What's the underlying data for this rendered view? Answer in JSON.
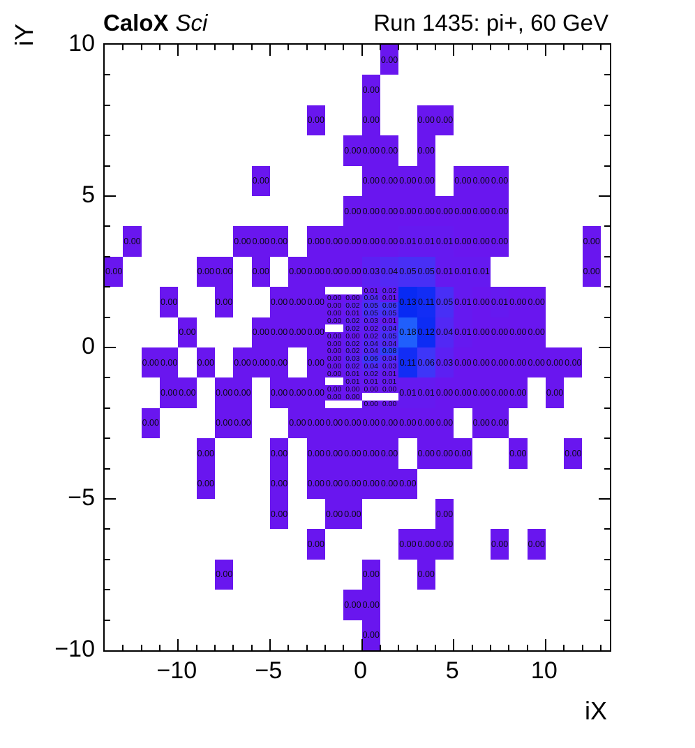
{
  "page": {
    "background": "#ffffff",
    "text_color": "#000000"
  },
  "titles": {
    "left_bold": "CaloX",
    "left_italic": "Sci",
    "right": "Run 1435: pi+, 60 GeV"
  },
  "axes": {
    "x_label": "iX",
    "y_label": "iY",
    "x_range": [
      -14,
      13.5
    ],
    "y_range": [
      -10,
      10
    ],
    "minor_step": 1,
    "x_major_ticks": [
      {
        "v": -10,
        "label": "−10"
      },
      {
        "v": -5,
        "label": "−5"
      },
      {
        "v": 0,
        "label": "0"
      },
      {
        "v": 5,
        "label": "5"
      },
      {
        "v": 10,
        "label": "10"
      }
    ],
    "y_major_ticks": [
      {
        "v": 10,
        "label": "10"
      },
      {
        "v": 5,
        "label": "5"
      },
      {
        "v": 0,
        "label": "0"
      },
      {
        "v": -5,
        "label": "−5"
      },
      {
        "v": -10,
        "label": "−10"
      }
    ]
  },
  "palette": {
    "low_color": "#6916ef",
    "high_color": "#2060fb",
    "stops": [
      [
        0.0,
        105,
        22,
        239
      ],
      [
        0.03,
        92,
        32,
        243
      ],
      [
        0.05,
        72,
        47,
        246
      ],
      [
        0.07,
        52,
        62,
        249
      ],
      [
        0.09,
        38,
        66,
        250
      ],
      [
        0.11,
        18,
        45,
        245
      ],
      [
        0.13,
        8,
        42,
        243
      ],
      [
        0.18,
        32,
        95,
        252
      ]
    ]
  },
  "chart_data": {
    "type": "heatmap",
    "title": "Run 1435: pi+, 60 GeV",
    "subtitle_left": "CaloX Sci",
    "xlabel": "iX",
    "ylabel": "iY",
    "x_range": [
      -14,
      13.5
    ],
    "y_range": [
      -10,
      10
    ],
    "value_format": "0.00",
    "grid": false,
    "legend": "none",
    "cells_format": "[x_low, y_low, width, height, value]",
    "cells": [
      [
        1,
        9,
        1,
        1,
        0.0
      ],
      [
        0,
        8,
        1,
        1,
        0.0
      ],
      [
        -3,
        7,
        1,
        1,
        0.0
      ],
      [
        0,
        7,
        1,
        1,
        0.0
      ],
      [
        3,
        7,
        1,
        1,
        0.0
      ],
      [
        4,
        7,
        1,
        1,
        0.0
      ],
      [
        -1,
        6,
        1,
        1,
        0.0
      ],
      [
        0,
        6,
        1,
        1,
        0.0
      ],
      [
        1,
        6,
        1,
        1,
        0.0
      ],
      [
        3,
        6,
        1,
        1,
        0.0
      ],
      [
        -6,
        5,
        1,
        1,
        0.0
      ],
      [
        0,
        5,
        1,
        1,
        0.0
      ],
      [
        1,
        5,
        1,
        1,
        0.0
      ],
      [
        2,
        5,
        1,
        1,
        0.0
      ],
      [
        3,
        5,
        1,
        1,
        0.0
      ],
      [
        5,
        5,
        1,
        1,
        0.0
      ],
      [
        6,
        5,
        1,
        1,
        0.0
      ],
      [
        7,
        5,
        1,
        1,
        0.0
      ],
      [
        -1,
        4,
        1,
        1,
        0.0
      ],
      [
        0,
        4,
        1,
        1,
        0.0
      ],
      [
        1,
        4,
        1,
        1,
        0.0
      ],
      [
        2,
        4,
        1,
        1,
        0.0
      ],
      [
        3,
        4,
        1,
        1,
        0.0
      ],
      [
        4,
        4,
        1,
        1,
        0.0
      ],
      [
        5,
        4,
        1,
        1,
        0.0
      ],
      [
        6,
        4,
        1,
        1,
        0.0
      ],
      [
        7,
        4,
        1,
        1,
        0.0
      ],
      [
        -13,
        3,
        1,
        1,
        0.0
      ],
      [
        -7,
        3,
        1,
        1,
        0.0
      ],
      [
        -6,
        3,
        1,
        1,
        0.0
      ],
      [
        -5,
        3,
        1,
        1,
        0.0
      ],
      [
        -3,
        3,
        1,
        1,
        0.0
      ],
      [
        -2,
        3,
        1,
        1,
        0.0
      ],
      [
        -1,
        3,
        1,
        1,
        0.0
      ],
      [
        0,
        3,
        1,
        1,
        0.0
      ],
      [
        1,
        3,
        1,
        1,
        0.0
      ],
      [
        2,
        3,
        1,
        1,
        0.01
      ],
      [
        3,
        3,
        1,
        1,
        0.01
      ],
      [
        4,
        3,
        1,
        1,
        0.01
      ],
      [
        5,
        3,
        1,
        1,
        0.0
      ],
      [
        6,
        3,
        1,
        1,
        0.0
      ],
      [
        7,
        3,
        1,
        1,
        0.0
      ],
      [
        12,
        3,
        1,
        1,
        0.0
      ],
      [
        -14,
        2,
        1,
        1,
        0.0
      ],
      [
        -9,
        2,
        1,
        1,
        0.0
      ],
      [
        -8,
        2,
        1,
        1,
        0.0
      ],
      [
        -6,
        2,
        1,
        1,
        0.0
      ],
      [
        -4,
        2,
        1,
        1,
        0.0
      ],
      [
        -3,
        2,
        1,
        1,
        0.0
      ],
      [
        -2,
        2,
        1,
        1,
        0.0
      ],
      [
        -1,
        2,
        1,
        1,
        0.0
      ],
      [
        0,
        2,
        1,
        1,
        0.03
      ],
      [
        1,
        2,
        1,
        1,
        0.04
      ],
      [
        2,
        2,
        1,
        1,
        0.05
      ],
      [
        3,
        2,
        1,
        1,
        0.05
      ],
      [
        4,
        2,
        1,
        1,
        0.01
      ],
      [
        5,
        2,
        1,
        1,
        0.01
      ],
      [
        6,
        2,
        1,
        1,
        0.01
      ],
      [
        12,
        2,
        1,
        1,
        0.0
      ],
      [
        -11,
        1,
        1,
        1,
        0.0
      ],
      [
        -8,
        1,
        1,
        1,
        0.0
      ],
      [
        -5,
        1,
        1,
        1,
        0.0
      ],
      [
        -4,
        1,
        1,
        1,
        0.0
      ],
      [
        -3,
        1,
        1,
        1,
        0.0
      ],
      [
        2,
        1,
        1,
        1,
        0.13
      ],
      [
        3,
        1,
        1,
        1,
        0.11
      ],
      [
        4,
        1,
        1,
        1,
        0.05
      ],
      [
        5,
        1,
        1,
        1,
        0.01
      ],
      [
        6,
        1,
        1,
        1,
        0.0
      ],
      [
        7,
        1,
        1,
        1,
        0.01
      ],
      [
        8,
        1,
        1,
        1,
        0.0
      ],
      [
        9,
        1,
        1,
        1,
        0.0
      ],
      [
        -10,
        0,
        1,
        1,
        0.0
      ],
      [
        -6,
        0,
        1,
        1,
        0.0
      ],
      [
        -5,
        0,
        1,
        1,
        0.0
      ],
      [
        -4,
        0,
        1,
        1,
        0.0
      ],
      [
        -3,
        0,
        1,
        1,
        0.0
      ],
      [
        2,
        0,
        1,
        1,
        0.18
      ],
      [
        3,
        0,
        1,
        1,
        0.12
      ],
      [
        4,
        0,
        1,
        1,
        0.04
      ],
      [
        5,
        0,
        1,
        1,
        0.01
      ],
      [
        6,
        0,
        1,
        1,
        0.0
      ],
      [
        7,
        0,
        1,
        1,
        0.0
      ],
      [
        8,
        0,
        1,
        1,
        0.0
      ],
      [
        9,
        0,
        1,
        1,
        0.0
      ],
      [
        -12,
        -1,
        1,
        1,
        0.0
      ],
      [
        -11,
        -1,
        1,
        1,
        0.0
      ],
      [
        -9,
        -1,
        1,
        1,
        0.0
      ],
      [
        -7,
        -1,
        1,
        1,
        0.0
      ],
      [
        -6,
        -1,
        1,
        1,
        0.0
      ],
      [
        -5,
        -1,
        1,
        1,
        0.0
      ],
      [
        -3,
        -1,
        1,
        1,
        0.0
      ],
      [
        2,
        -1,
        1,
        1,
        0.11
      ],
      [
        3,
        -1,
        1,
        1,
        0.06
      ],
      [
        4,
        -1,
        1,
        1,
        0.03
      ],
      [
        5,
        -1,
        1,
        1,
        0.0
      ],
      [
        6,
        -1,
        1,
        1,
        0.0
      ],
      [
        7,
        -1,
        1,
        1,
        0.0
      ],
      [
        8,
        -1,
        1,
        1,
        0.0
      ],
      [
        9,
        -1,
        1,
        1,
        0.0
      ],
      [
        10,
        -1,
        1,
        1,
        0.0
      ],
      [
        11,
        -1,
        1,
        1,
        0.0
      ],
      [
        -11,
        -2,
        1,
        1,
        0.0
      ],
      [
        -10,
        -2,
        1,
        1,
        0.0
      ],
      [
        -8,
        -2,
        1,
        1,
        0.0
      ],
      [
        -7,
        -2,
        1,
        1,
        0.0
      ],
      [
        -5,
        -2,
        1,
        1,
        0.0
      ],
      [
        -4,
        -2,
        1,
        1,
        0.0
      ],
      [
        -3,
        -2,
        1,
        1,
        0.0
      ],
      [
        2,
        -2,
        1,
        1,
        0.01
      ],
      [
        3,
        -2,
        1,
        1,
        0.01
      ],
      [
        4,
        -2,
        1,
        1,
        0.0
      ],
      [
        5,
        -2,
        1,
        1,
        0.0
      ],
      [
        6,
        -2,
        1,
        1,
        0.0
      ],
      [
        7,
        -2,
        1,
        1,
        0.0
      ],
      [
        8,
        -2,
        1,
        1,
        0.0
      ],
      [
        10,
        -2,
        1,
        1,
        0.0
      ],
      [
        -12,
        -3,
        1,
        1,
        0.0
      ],
      [
        -8,
        -3,
        1,
        1,
        0.0
      ],
      [
        -7,
        -3,
        1,
        1,
        0.0
      ],
      [
        -4,
        -3,
        1,
        1,
        0.0
      ],
      [
        -3,
        -3,
        1,
        1,
        0.0
      ],
      [
        -2,
        -3,
        1,
        1,
        0.0
      ],
      [
        -1,
        -3,
        1,
        1,
        0.0
      ],
      [
        0,
        -3,
        1,
        1,
        0.0
      ],
      [
        1,
        -3,
        1,
        1,
        0.0
      ],
      [
        2,
        -3,
        1,
        1,
        0.0
      ],
      [
        3,
        -3,
        1,
        1,
        0.0
      ],
      [
        4,
        -3,
        1,
        1,
        0.0
      ],
      [
        6,
        -3,
        1,
        1,
        0.0
      ],
      [
        7,
        -3,
        1,
        1,
        0.0
      ],
      [
        -9,
        -4,
        1,
        1,
        0.0
      ],
      [
        -5,
        -4,
        1,
        1,
        0.0
      ],
      [
        -3,
        -4,
        1,
        1,
        0.0
      ],
      [
        -2,
        -4,
        1,
        1,
        0.0
      ],
      [
        -1,
        -4,
        1,
        1,
        0.0
      ],
      [
        0,
        -4,
        1,
        1,
        0.0
      ],
      [
        1,
        -4,
        1,
        1,
        0.0
      ],
      [
        3,
        -4,
        1,
        1,
        0.0
      ],
      [
        4,
        -4,
        1,
        1,
        0.0
      ],
      [
        5,
        -4,
        1,
        1,
        0.0
      ],
      [
        8,
        -4,
        1,
        1,
        0.0
      ],
      [
        11,
        -4,
        1,
        1,
        0.0
      ],
      [
        -9,
        -5,
        1,
        1,
        0.0
      ],
      [
        -5,
        -5,
        1,
        1,
        0.0
      ],
      [
        -3,
        -5,
        1,
        1,
        0.0
      ],
      [
        -2,
        -5,
        1,
        1,
        0.0
      ],
      [
        -1,
        -5,
        1,
        1,
        0.0
      ],
      [
        0,
        -5,
        1,
        1,
        0.0
      ],
      [
        1,
        -5,
        1,
        1,
        0.0
      ],
      [
        2,
        -5,
        1,
        1,
        0.0
      ],
      [
        -5,
        -6,
        1,
        1,
        0.0
      ],
      [
        -2,
        -6,
        1,
        1,
        0.0
      ],
      [
        -1,
        -6,
        1,
        1,
        0.0
      ],
      [
        4,
        -6,
        1,
        1,
        0.0
      ],
      [
        -3,
        -7,
        1,
        1,
        0.0
      ],
      [
        2,
        -7,
        1,
        1,
        0.0
      ],
      [
        3,
        -7,
        1,
        1,
        0.0
      ],
      [
        4,
        -7,
        1,
        1,
        0.0
      ],
      [
        7,
        -7,
        1,
        1,
        0.0
      ],
      [
        9,
        -7,
        1,
        1,
        0.0
      ],
      [
        -8,
        -8,
        1,
        1,
        0.0
      ],
      [
        0,
        -8,
        1,
        1,
        0.0
      ],
      [
        3,
        -8,
        1,
        1,
        0.0
      ],
      [
        -1,
        -9,
        1,
        1,
        0.0
      ],
      [
        0,
        -9,
        1,
        1,
        0.0
      ],
      [
        0,
        -10,
        1,
        1,
        0.0
      ],
      [
        0,
        1.75,
        1,
        0.25,
        0.01
      ],
      [
        1,
        1.75,
        1,
        0.25,
        0.02
      ],
      [
        -2,
        1.5,
        1,
        0.25,
        0.0
      ],
      [
        -1,
        1.5,
        1,
        0.25,
        0.0
      ],
      [
        0,
        1.5,
        1,
        0.25,
        0.04
      ],
      [
        1,
        1.5,
        1,
        0.25,
        0.01
      ],
      [
        -2,
        1.25,
        1,
        0.25,
        0.0
      ],
      [
        -1,
        1.25,
        1,
        0.25,
        0.02
      ],
      [
        0,
        1.25,
        1,
        0.25,
        0.05
      ],
      [
        1,
        1.25,
        1,
        0.25,
        0.06
      ],
      [
        -2,
        1,
        1,
        0.25,
        0.0
      ],
      [
        -1,
        1,
        1,
        0.25,
        0.01
      ],
      [
        0,
        1,
        1,
        0.25,
        0.05
      ],
      [
        1,
        1,
        1,
        0.25,
        0.05
      ],
      [
        -2,
        0.75,
        1,
        0.25,
        0.0
      ],
      [
        -1,
        0.75,
        1,
        0.25,
        0.02
      ],
      [
        0,
        0.75,
        1,
        0.25,
        0.03
      ],
      [
        1,
        0.75,
        1,
        0.25,
        0.01
      ],
      [
        -1,
        0.5,
        1,
        0.25,
        0.02
      ],
      [
        0,
        0.5,
        1,
        0.25,
        0.02
      ],
      [
        1,
        0.5,
        1,
        0.25,
        0.04
      ],
      [
        -2,
        0.25,
        1,
        0.25,
        0.0
      ],
      [
        -1,
        0.25,
        1,
        0.25,
        0.0
      ],
      [
        0,
        0.25,
        1,
        0.25,
        0.02
      ],
      [
        1,
        0.25,
        1,
        0.25,
        0.05
      ],
      [
        -2,
        0,
        1,
        0.25,
        0.0
      ],
      [
        -1,
        0,
        1,
        0.25,
        0.02
      ],
      [
        0,
        0,
        1,
        0.25,
        0.04
      ],
      [
        1,
        0,
        1,
        0.25,
        0.04
      ],
      [
        -2,
        -0.25,
        1,
        0.25,
        0.0
      ],
      [
        -1,
        -0.25,
        1,
        0.25,
        0.02
      ],
      [
        0,
        -0.25,
        1,
        0.25,
        0.04
      ],
      [
        1,
        -0.25,
        1,
        0.25,
        0.08
      ],
      [
        -2,
        -0.5,
        1,
        0.25,
        0.0
      ],
      [
        -1,
        -0.5,
        1,
        0.25,
        0.03
      ],
      [
        0,
        -0.5,
        1,
        0.25,
        0.06
      ],
      [
        1,
        -0.5,
        1,
        0.25,
        0.04
      ],
      [
        -2,
        -0.75,
        1,
        0.25,
        0.0
      ],
      [
        -1,
        -0.75,
        1,
        0.25,
        0.02
      ],
      [
        0,
        -0.75,
        1,
        0.25,
        0.04
      ],
      [
        1,
        -0.75,
        1,
        0.25,
        0.03
      ],
      [
        -2,
        -1,
        1,
        0.25,
        0.0
      ],
      [
        -1,
        -1,
        1,
        0.25,
        0.01
      ],
      [
        0,
        -1,
        1,
        0.25,
        0.02
      ],
      [
        1,
        -1,
        1,
        0.25,
        0.01
      ],
      [
        -1,
        -1.25,
        1,
        0.25,
        0.01
      ],
      [
        0,
        -1.25,
        1,
        0.25,
        0.01
      ],
      [
        1,
        -1.25,
        1,
        0.25,
        0.01
      ],
      [
        -2,
        -1.5,
        1,
        0.25,
        0.0
      ],
      [
        -1,
        -1.5,
        1,
        0.25,
        0.0
      ],
      [
        0,
        -1.5,
        1,
        0.25,
        0.0
      ],
      [
        1,
        -1.5,
        1,
        0.25,
        0.0
      ],
      [
        -2,
        -1.75,
        1,
        0.25,
        0.0
      ],
      [
        -1,
        -1.75,
        1,
        0.25,
        0.0
      ],
      [
        0,
        -2,
        1,
        0.25,
        0.0
      ],
      [
        1,
        -2,
        1,
        0.25,
        0.0
      ]
    ]
  }
}
